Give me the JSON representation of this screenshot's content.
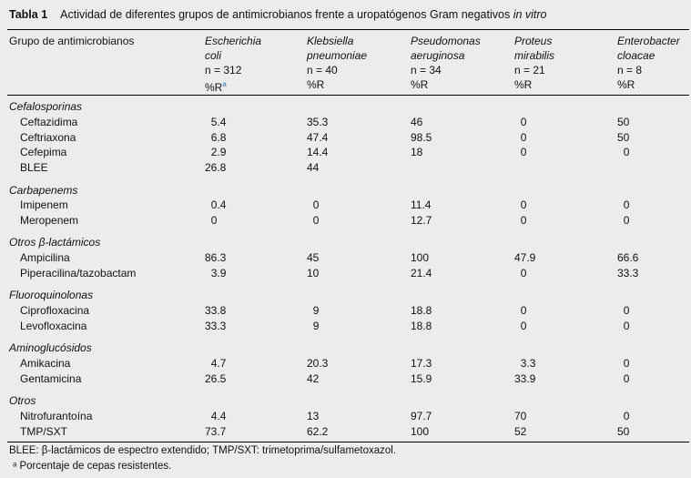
{
  "table": {
    "label": "Tabla 1",
    "caption": "Actividad de diferentes grupos de antimicrobianos frente a uropatógenos Gram negativos",
    "caption_italic": "in vitro",
    "first_header": "Grupo de antimicrobianos",
    "columns": [
      {
        "name1": "Escherichia",
        "name2": "coli",
        "n": "n = 312",
        "unit": "%R",
        "sup": "a"
      },
      {
        "name1": "Klebsiella",
        "name2": "pneumoniae",
        "n": "n = 40",
        "unit": "%R"
      },
      {
        "name1": "Pseudomonas",
        "name2": "aeruginosa",
        "n": "n = 34",
        "unit": "%R"
      },
      {
        "name1": "Proteus",
        "name2": "mirabilis",
        "n": "n = 21",
        "unit": "%R"
      },
      {
        "name1": "Enterobacter",
        "name2": "cloacae",
        "n": "n = 8",
        "unit": "%R"
      }
    ],
    "sections": [
      {
        "name": "Cefalosporinas",
        "rows": [
          {
            "label": "Ceftazidima",
            "values": [
              "5.4",
              "35.3",
              "46",
              "0",
              "50"
            ]
          },
          {
            "label": "Ceftriaxona",
            "values": [
              "6.8",
              "47.4",
              "98.5",
              "0",
              "50"
            ]
          },
          {
            "label": "Cefepima",
            "values": [
              "2.9",
              "14.4",
              "18",
              "0",
              "0"
            ]
          },
          {
            "label": "BLEE",
            "values": [
              "26.8",
              "44",
              "",
              "",
              ""
            ]
          }
        ]
      },
      {
        "name": "Carbapenems",
        "rows": [
          {
            "label": "Imipenem",
            "values": [
              "0.4",
              "0",
              "11.4",
              "0",
              "0"
            ]
          },
          {
            "label": "Meropenem",
            "values": [
              "0",
              "0",
              "12.7",
              "0",
              "0"
            ]
          }
        ]
      },
      {
        "name": "Otros β-lactámicos",
        "rows": [
          {
            "label": "Ampicilina",
            "values": [
              "86.3",
              "45",
              "100",
              "47.9",
              "66.6"
            ]
          },
          {
            "label": "Piperacilina/tazobactam",
            "values": [
              "3.9",
              "10",
              "21.4",
              "0",
              "33.3"
            ]
          }
        ]
      },
      {
        "name": "Fluoroquinolonas",
        "rows": [
          {
            "label": "Ciprofloxacina",
            "values": [
              "33.8",
              "9",
              "18.8",
              "0",
              "0"
            ]
          },
          {
            "label": "Levofloxacina",
            "values": [
              "33.3",
              "9",
              "18.8",
              "0",
              "0"
            ]
          }
        ]
      },
      {
        "name": "Aminoglucósidos",
        "rows": [
          {
            "label": "Amikacina",
            "values": [
              "4.7",
              "20.3",
              "17.3",
              "3.3",
              "0"
            ]
          },
          {
            "label": "Gentamicina",
            "values": [
              "26.5",
              "42",
              "15.9",
              "33.9",
              "0"
            ]
          }
        ]
      },
      {
        "name": "Otros",
        "rows": [
          {
            "label": "Nitrofurantoína",
            "values": [
              "4.4",
              "13",
              "97.7",
              "70",
              "0"
            ]
          },
          {
            "label": "TMP/SXT",
            "values": [
              "73.7",
              "62.2",
              "100",
              "52",
              "50"
            ]
          }
        ]
      }
    ],
    "footnotes": [
      "BLEE: β-lactámicos de espectro extendido; TMP/SXT: trimetoprima/sulfametoxazol.",
      "ᵃ Porcentaje de cepas resistentes."
    ]
  }
}
